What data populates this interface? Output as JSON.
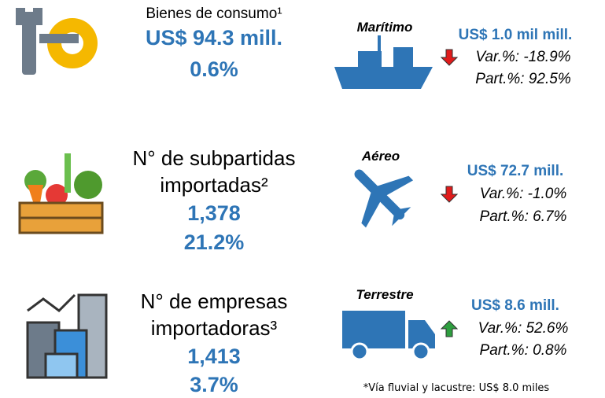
{
  "left": [
    {
      "label": [
        "Bienes de consumo¹"
      ],
      "value": "US$ 94.3 mill.",
      "change": "0.6%"
    },
    {
      "label": [
        "N° de subpartidas",
        "importadas²"
      ],
      "value": "1,378",
      "change": "21.2%"
    },
    {
      "label": [
        "N° de empresas",
        "importadoras³"
      ],
      "value": "1,413",
      "change": "3.7%"
    }
  ],
  "right": [
    {
      "mode": "Marítimo",
      "value": "US$ 1.0 mil mill.",
      "var": "Var.%: -18.9%",
      "part": "Part.%: 92.5%",
      "trend": "down"
    },
    {
      "mode": "Aéreo",
      "value": "US$ 72.7 mill.",
      "var": "Var.%: -1.0%",
      "part": "Part.%: 6.7%",
      "trend": "down"
    },
    {
      "mode": "Terrestre",
      "value": "US$ 8.6 mill.",
      "var": "Var.%: 52.6%",
      "part": "Part.%: 0.8%",
      "trend": "up"
    }
  ],
  "footnote": "*Vía fluvial y lacustre: US$ 8.0 miles"
}
